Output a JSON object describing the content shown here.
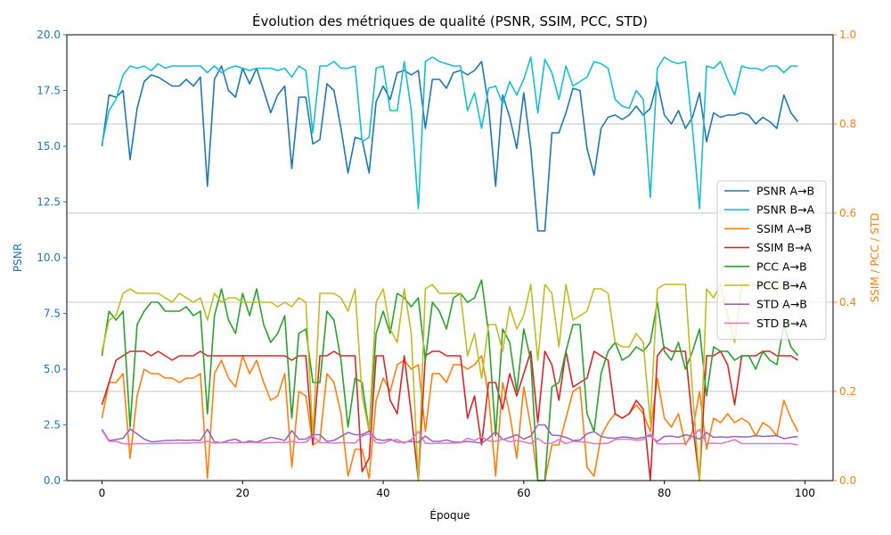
{
  "chart_data": {
    "type": "line",
    "title": "Évolution des métriques de qualité (PSNR, SSIM, PCC, STD)",
    "xlabel": "Époque",
    "ylabel_left": "PSNR",
    "ylabel_right": "SSIM / PCC / STD",
    "xlim": [
      -5,
      104
    ],
    "ylim_left": [
      0,
      20
    ],
    "ylim_right": [
      0,
      1
    ],
    "xticks": [
      0,
      20,
      40,
      60,
      80,
      100
    ],
    "yticks_left": [
      "0.0",
      "2.5",
      "5.0",
      "7.5",
      "10.0",
      "12.5",
      "15.0",
      "17.5",
      "20.0"
    ],
    "yticks_right": [
      "0.0",
      "0.2",
      "0.4",
      "0.6",
      "0.8",
      "1.0"
    ],
    "grid": "horizontal (right axis)",
    "legend_position": "center-right",
    "colors": {
      "psnr_ab": "#1f77b4",
      "psnr_ba": "#17becf",
      "ssim_ab": "#ff7f0e",
      "ssim_ba": "#d62728",
      "pcc_ab": "#2ca02c",
      "pcc_ba": "#bcbd22",
      "std_ab": "#9467bd",
      "std_ba": "#e377c2",
      "left_axis": "#1f77b4",
      "right_axis": "#ff7f0e"
    },
    "series": [
      {
        "name": "PSNR A→B",
        "axis": "left",
        "color": "#1f77b4",
        "values": [
          15.0,
          17.3,
          17.2,
          17.5,
          14.4,
          16.7,
          17.9,
          18.2,
          18.1,
          17.9,
          17.7,
          17.7,
          18.0,
          17.7,
          18.1,
          13.2,
          18.0,
          18.6,
          17.5,
          17.2,
          18.5,
          17.8,
          18.5,
          17.5,
          16.5,
          17.3,
          17.7,
          14.0,
          17.2,
          17.2,
          15.1,
          15.3,
          17.8,
          17.5,
          15.8,
          13.8,
          15.4,
          15.3,
          13.8,
          17.0,
          17.7,
          17.1,
          18.3,
          18.4,
          18.2,
          18.4,
          15.8,
          18.0,
          18.0,
          17.6,
          18.3,
          18.4,
          18.2,
          18.4,
          18.8,
          16.8,
          13.2,
          17.3,
          16.3,
          14.9,
          17.4,
          14.9,
          11.2,
          11.2,
          15.6,
          15.6,
          16.5,
          17.6,
          17.5,
          14.9,
          13.7,
          15.8,
          16.3,
          16.4,
          16.2,
          16.4,
          16.8,
          16.4,
          16.7,
          17.9,
          16.4,
          16.0,
          16.6,
          15.8,
          16.3,
          17.4,
          15.2,
          16.5,
          16.3,
          16.4,
          16.4,
          16.5,
          16.4,
          16.0,
          16.3,
          16.1,
          15.8,
          17.3,
          16.5,
          16.1
        ]
      },
      {
        "name": "PSNR B→A",
        "axis": "left",
        "color": "#17becf",
        "values": [
          15.1,
          16.6,
          17.1,
          18.2,
          18.6,
          18.5,
          18.6,
          18.4,
          18.7,
          18.5,
          18.6,
          18.6,
          18.6,
          18.6,
          18.6,
          18.3,
          18.6,
          18.3,
          18.5,
          18.6,
          18.5,
          18.4,
          18.5,
          18.5,
          18.5,
          18.4,
          18.5,
          18.1,
          18.6,
          18.4,
          15.6,
          18.6,
          18.6,
          18.8,
          18.5,
          18.5,
          18.6,
          15.2,
          15.4,
          18.5,
          18.6,
          16.6,
          16.6,
          18.8,
          16.6,
          12.2,
          18.8,
          19.0,
          18.8,
          18.7,
          18.6,
          18.6,
          16.6,
          17.4,
          15.8,
          17.6,
          17.7,
          16.9,
          17.9,
          17.3,
          18.0,
          19.0,
          16.5,
          18.9,
          18.3,
          17.1,
          18.6,
          17.7,
          17.9,
          18.1,
          18.8,
          18.7,
          18.5,
          17.1,
          16.8,
          16.7,
          17.5,
          17.1,
          12.7,
          18.5,
          19.0,
          18.8,
          18.7,
          18.8,
          15.8,
          12.2,
          18.6,
          18.5,
          18.8,
          18.0,
          17.3,
          18.6,
          18.5,
          18.5,
          18.4,
          18.6,
          18.6,
          18.3,
          18.6,
          18.6
        ]
      },
      {
        "name": "SSIM A→B",
        "axis": "right",
        "color": "#ff7f0e",
        "values": [
          0.14,
          0.22,
          0.22,
          0.24,
          0.05,
          0.19,
          0.25,
          0.24,
          0.24,
          0.23,
          0.23,
          0.22,
          0.23,
          0.23,
          0.24,
          0.005,
          0.24,
          0.27,
          0.23,
          0.21,
          0.28,
          0.24,
          0.27,
          0.22,
          0.18,
          0.19,
          0.24,
          0.03,
          0.2,
          0.19,
          0.08,
          0.09,
          0.24,
          0.22,
          0.15,
          0.01,
          0.07,
          0.07,
          0.005,
          0.18,
          0.23,
          0.2,
          0.26,
          0.27,
          0.25,
          0.26,
          0.11,
          0.24,
          0.24,
          0.22,
          0.26,
          0.26,
          0.25,
          0.26,
          0.28,
          0.19,
          0.01,
          0.22,
          0.15,
          0.05,
          0.21,
          0.12,
          0.0,
          0.0,
          0.08,
          0.08,
          0.14,
          0.2,
          0.21,
          0.03,
          0.01,
          0.1,
          0.13,
          0.15,
          0.14,
          0.15,
          0.17,
          0.15,
          0.11,
          0.23,
          0.14,
          0.12,
          0.15,
          0.08,
          0.11,
          0.2,
          0.07,
          0.14,
          0.13,
          0.15,
          0.13,
          0.14,
          0.13,
          0.1,
          0.13,
          0.12,
          0.1,
          0.18,
          0.14,
          0.11
        ]
      },
      {
        "name": "SSIM B→A",
        "axis": "right",
        "color": "#d62728",
        "values": [
          0.17,
          0.22,
          0.27,
          0.28,
          0.29,
          0.29,
          0.29,
          0.28,
          0.29,
          0.28,
          0.27,
          0.28,
          0.28,
          0.28,
          0.29,
          0.28,
          0.28,
          0.28,
          0.28,
          0.28,
          0.28,
          0.28,
          0.28,
          0.28,
          0.28,
          0.28,
          0.28,
          0.27,
          0.28,
          0.28,
          0.08,
          0.28,
          0.28,
          0.29,
          0.28,
          0.28,
          0.28,
          0.02,
          0.05,
          0.28,
          0.28,
          0.18,
          0.15,
          0.28,
          0.15,
          0.0,
          0.28,
          0.29,
          0.29,
          0.28,
          0.28,
          0.28,
          0.14,
          0.19,
          0.08,
          0.22,
          0.22,
          0.16,
          0.24,
          0.19,
          0.24,
          0.29,
          0.13,
          0.29,
          0.26,
          0.18,
          0.29,
          0.21,
          0.22,
          0.23,
          0.29,
          0.28,
          0.27,
          0.15,
          0.14,
          0.15,
          0.18,
          0.16,
          0.0,
          0.28,
          0.3,
          0.29,
          0.29,
          0.29,
          0.13,
          0.0,
          0.28,
          0.28,
          0.29,
          0.26,
          0.17,
          0.28,
          0.28,
          0.28,
          0.29,
          0.29,
          0.28,
          0.28,
          0.28,
          0.27
        ]
      },
      {
        "name": "PCC A→B",
        "axis": "right",
        "color": "#2ca02c",
        "values": [
          0.28,
          0.38,
          0.36,
          0.38,
          0.12,
          0.35,
          0.38,
          0.4,
          0.4,
          0.38,
          0.38,
          0.38,
          0.39,
          0.37,
          0.38,
          0.15,
          0.37,
          0.43,
          0.36,
          0.33,
          0.42,
          0.37,
          0.43,
          0.35,
          0.31,
          0.33,
          0.37,
          0.14,
          0.33,
          0.34,
          0.22,
          0.22,
          0.38,
          0.36,
          0.27,
          0.12,
          0.23,
          0.22,
          0.11,
          0.33,
          0.38,
          0.33,
          0.42,
          0.41,
          0.39,
          0.41,
          0.27,
          0.4,
          0.38,
          0.34,
          0.41,
          0.42,
          0.4,
          0.41,
          0.45,
          0.33,
          0.1,
          0.34,
          0.31,
          0.2,
          0.34,
          0.27,
          0.0,
          0.0,
          0.21,
          0.22,
          0.29,
          0.35,
          0.35,
          0.15,
          0.11,
          0.24,
          0.29,
          0.31,
          0.27,
          0.28,
          0.3,
          0.29,
          0.31,
          0.4,
          0.29,
          0.27,
          0.31,
          0.25,
          0.29,
          0.34,
          0.19,
          0.3,
          0.29,
          0.29,
          0.27,
          0.28,
          0.28,
          0.25,
          0.29,
          0.27,
          0.26,
          0.35,
          0.3,
          0.28
        ]
      },
      {
        "name": "PCC B→A",
        "axis": "right",
        "color": "#bcbd22",
        "values": [
          0.29,
          0.36,
          0.37,
          0.42,
          0.43,
          0.42,
          0.42,
          0.42,
          0.42,
          0.41,
          0.4,
          0.42,
          0.41,
          0.4,
          0.41,
          0.36,
          0.42,
          0.4,
          0.41,
          0.41,
          0.4,
          0.4,
          0.4,
          0.4,
          0.4,
          0.39,
          0.4,
          0.39,
          0.41,
          0.4,
          0.1,
          0.42,
          0.42,
          0.42,
          0.41,
          0.38,
          0.43,
          0.19,
          0.11,
          0.4,
          0.43,
          0.34,
          0.31,
          0.43,
          0.33,
          0.0,
          0.43,
          0.44,
          0.42,
          0.42,
          0.42,
          0.42,
          0.28,
          0.33,
          0.23,
          0.35,
          0.35,
          0.29,
          0.39,
          0.34,
          0.37,
          0.44,
          0.27,
          0.44,
          0.42,
          0.3,
          0.44,
          0.36,
          0.37,
          0.38,
          0.43,
          0.43,
          0.42,
          0.31,
          0.3,
          0.3,
          0.33,
          0.31,
          0.13,
          0.43,
          0.44,
          0.44,
          0.44,
          0.44,
          0.2,
          0.0,
          0.43,
          0.41,
          0.44,
          0.37,
          0.31,
          0.44,
          0.44,
          0.44,
          0.44,
          0.44,
          0.43,
          0.44,
          0.44,
          0.44
        ]
      },
      {
        "name": "STD A→B",
        "axis": "right",
        "color": "#9467bd",
        "values": [
          0.115,
          0.09,
          0.092,
          0.095,
          0.116,
          0.105,
          0.093,
          0.087,
          0.088,
          0.09,
          0.09,
          0.091,
          0.09,
          0.091,
          0.09,
          0.115,
          0.087,
          0.085,
          0.09,
          0.093,
          0.085,
          0.089,
          0.086,
          0.092,
          0.097,
          0.094,
          0.09,
          0.112,
          0.093,
          0.093,
          0.103,
          0.103,
          0.088,
          0.09,
          0.099,
          0.108,
          0.103,
          0.103,
          0.111,
          0.093,
          0.09,
          0.093,
          0.086,
          0.086,
          0.088,
          0.086,
          0.1,
          0.088,
          0.088,
          0.091,
          0.087,
          0.086,
          0.088,
          0.086,
          0.084,
          0.095,
          0.11,
          0.092,
          0.097,
          0.103,
          0.093,
          0.1,
          0.125,
          0.125,
          0.102,
          0.101,
          0.097,
          0.09,
          0.091,
          0.105,
          0.11,
          0.099,
          0.096,
          0.095,
          0.098,
          0.097,
          0.094,
          0.097,
          0.1,
          0.088,
          0.099,
          0.1,
          0.097,
          0.103,
          0.099,
          0.093,
          0.108,
          0.097,
          0.098,
          0.097,
          0.099,
          0.098,
          0.098,
          0.101,
          0.099,
          0.1,
          0.101,
          0.094,
          0.097,
          0.099
        ]
      },
      {
        "name": "STD B→A",
        "axis": "right",
        "color": "#e377c2",
        "values": [
          0.113,
          0.088,
          0.088,
          0.083,
          0.082,
          0.083,
          0.083,
          0.083,
          0.083,
          0.084,
          0.084,
          0.084,
          0.084,
          0.085,
          0.085,
          0.088,
          0.084,
          0.085,
          0.085,
          0.085,
          0.085,
          0.086,
          0.085,
          0.085,
          0.085,
          0.086,
          0.085,
          0.088,
          0.085,
          0.086,
          0.1,
          0.085,
          0.085,
          0.084,
          0.085,
          0.085,
          0.084,
          0.1,
          0.105,
          0.085,
          0.084,
          0.09,
          0.092,
          0.084,
          0.092,
          0.11,
          0.084,
          0.083,
          0.084,
          0.084,
          0.084,
          0.085,
          0.095,
          0.09,
          0.098,
          0.089,
          0.088,
          0.093,
          0.087,
          0.09,
          0.087,
          0.083,
          0.095,
          0.083,
          0.084,
          0.092,
          0.083,
          0.088,
          0.087,
          0.086,
          0.083,
          0.083,
          0.084,
          0.092,
          0.093,
          0.093,
          0.09,
          0.092,
          0.105,
          0.083,
          0.082,
          0.083,
          0.083,
          0.083,
          0.1,
          0.115,
          0.083,
          0.084,
          0.083,
          0.087,
          0.092,
          0.083,
          0.083,
          0.083,
          0.083,
          0.083,
          0.083,
          0.083,
          0.083,
          0.08
        ]
      }
    ]
  }
}
